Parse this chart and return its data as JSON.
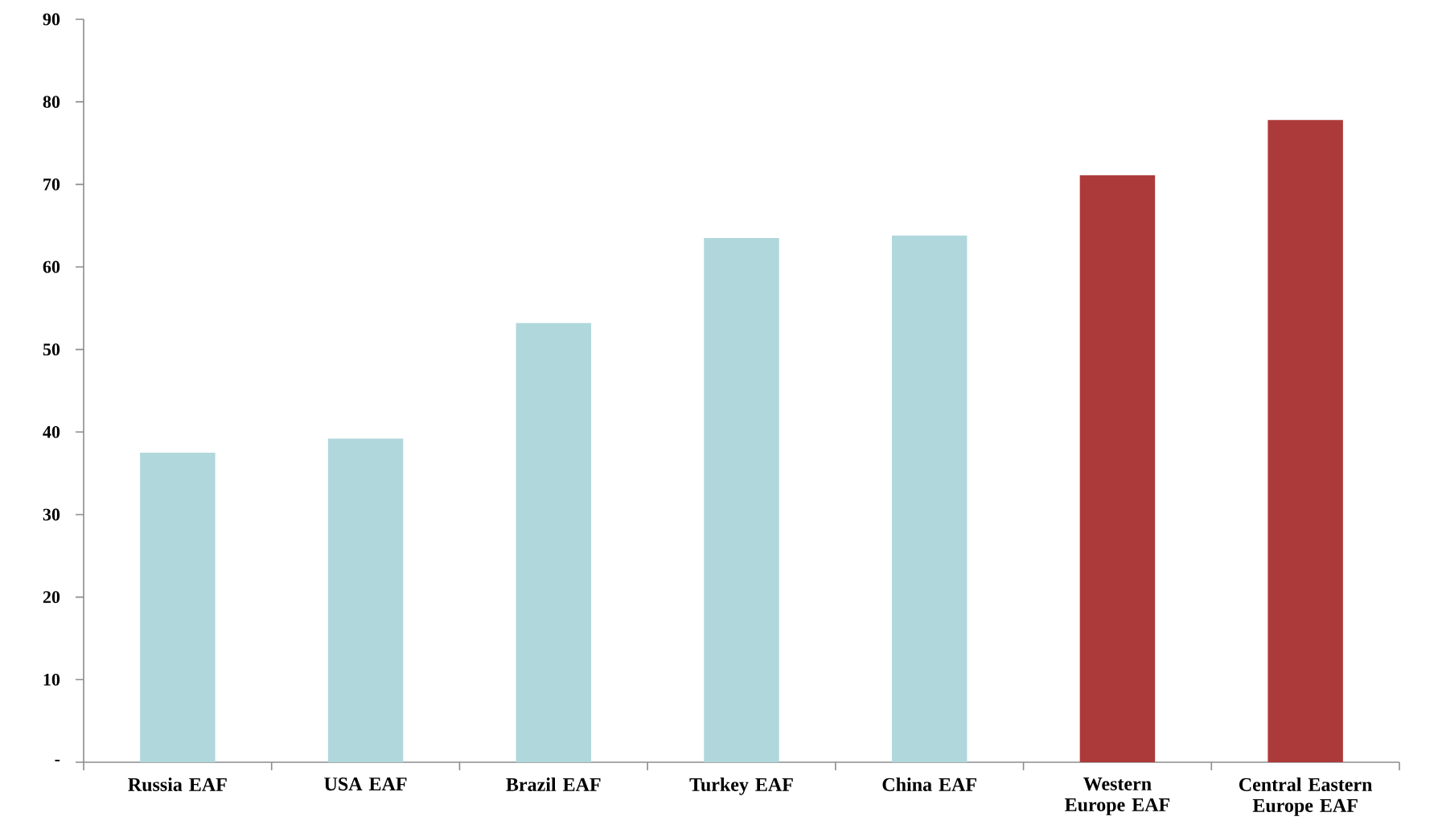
{
  "chart_data": {
    "type": "bar",
    "categories": [
      "Russia EAF",
      "USA EAF",
      "Brazil EAF",
      "Turkey EAF",
      "China EAF",
      "Western Europe EAF",
      "Central Eastern Europe EAF"
    ],
    "values": [
      37.5,
      39.2,
      53.2,
      63.5,
      63.8,
      71.1,
      77.8
    ],
    "colors": [
      "#b0d8dc",
      "#b0d8dc",
      "#b0d8dc",
      "#b0d8dc",
      "#b0d8dc",
      "#ad3a3a",
      "#ad3a3a"
    ],
    "ylim": [
      0,
      90
    ],
    "yticks": [
      {
        "value": 0,
        "label": "-"
      },
      10,
      20,
      30,
      40,
      50,
      60,
      70,
      80,
      90
    ]
  }
}
